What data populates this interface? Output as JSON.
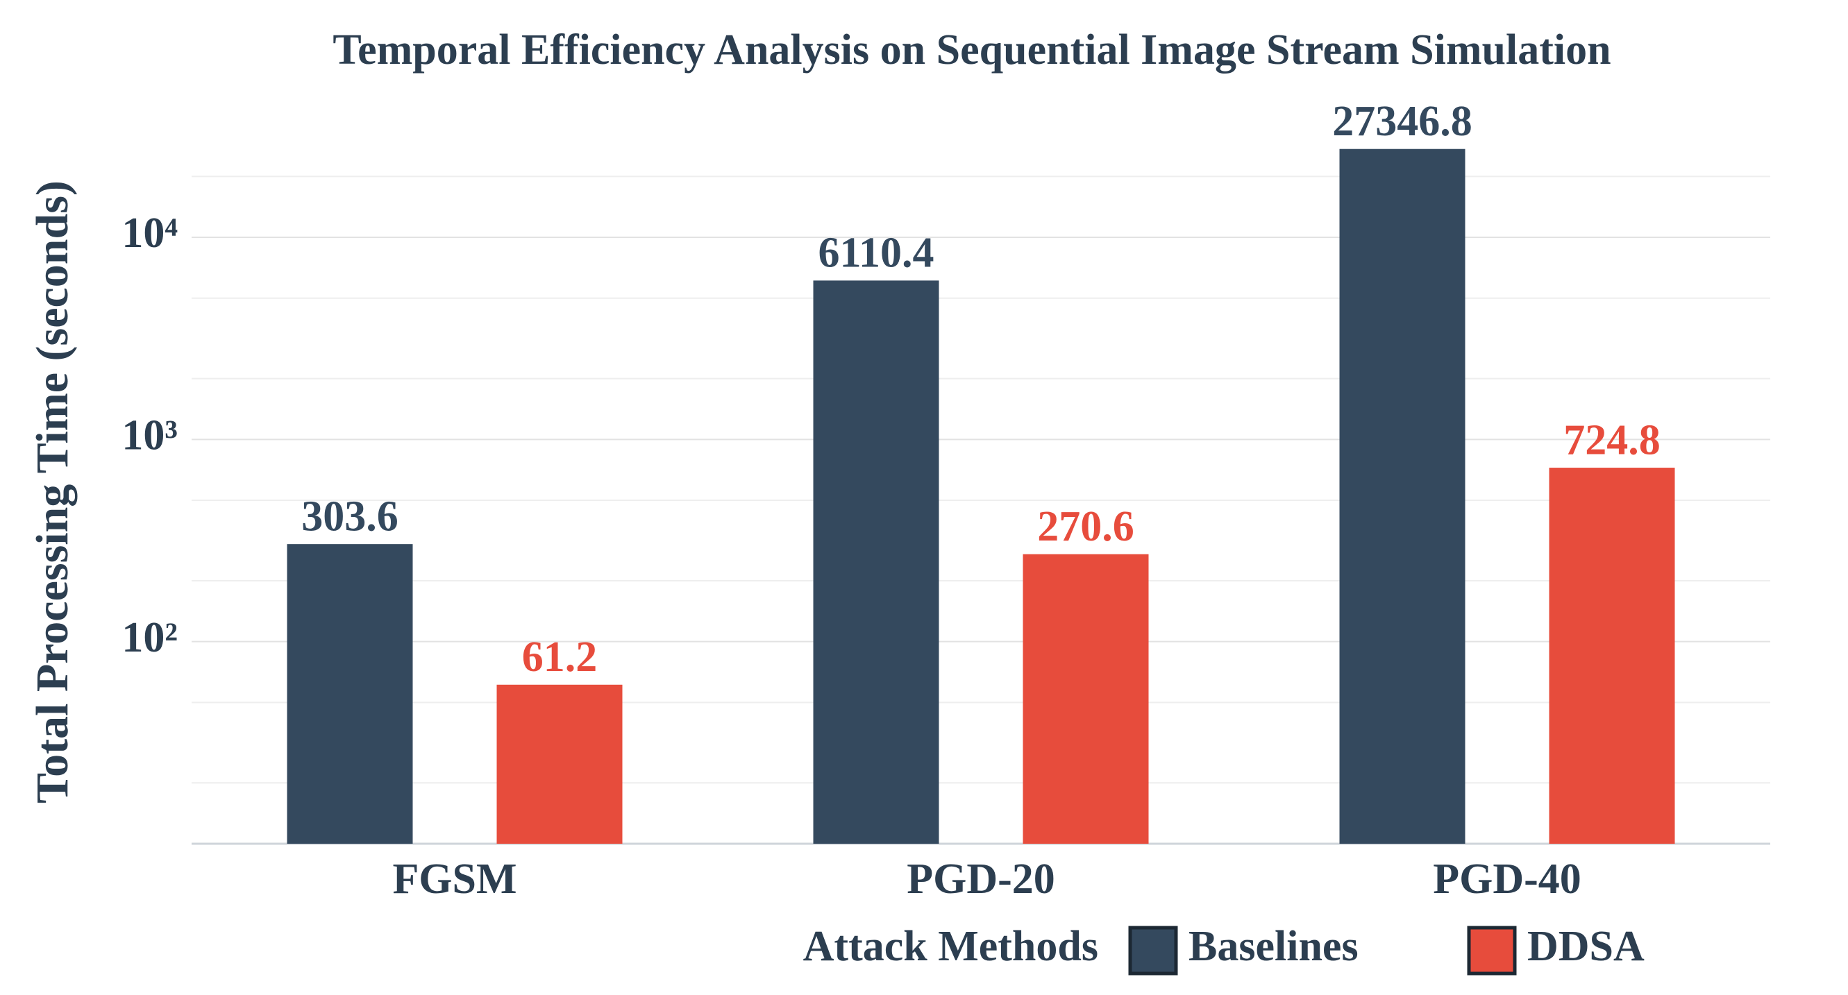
{
  "chart_data": {
    "type": "bar",
    "title": "Temporal Efficiency Analysis on Sequential Image Stream Simulation",
    "x_label": "Attack Methods",
    "y_label": "Total Processing Time (seconds)",
    "categories": [
      "FGSM",
      "PGD-20",
      "PGD-40"
    ],
    "series": [
      {
        "name": "Baselines",
        "color": "#34495e",
        "values": [
          303.6,
          6110.4,
          27346.8
        ]
      },
      {
        "name": "DDSA",
        "color": "#e74c3c",
        "values": [
          61.2,
          270.6,
          724.8
        ]
      }
    ],
    "log_scale": true,
    "ylim": [
      10,
      30000
    ],
    "yticks": [
      {
        "value": 100,
        "label": "10²"
      },
      {
        "value": 1000,
        "label": "10³"
      },
      {
        "value": 10000,
        "label": "10⁴"
      }
    ],
    "yminorticks": [
      20,
      50,
      200,
      500,
      2000,
      5000,
      20000
    ],
    "grid": true,
    "legend_position": "bottom"
  }
}
